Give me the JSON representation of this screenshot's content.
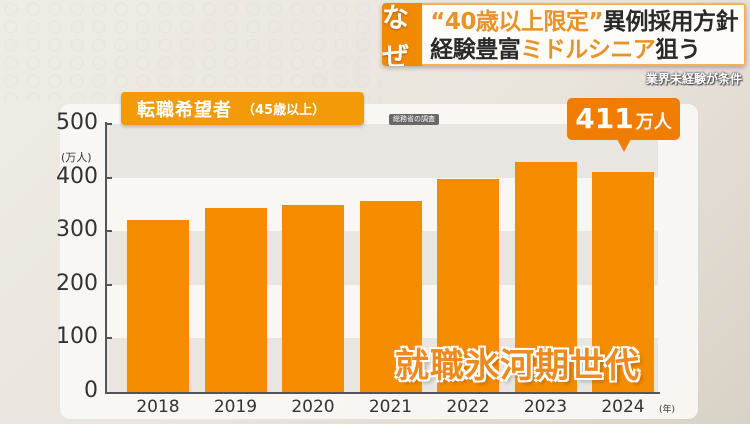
{
  "headline": {
    "tag": "なぜ",
    "line1_accent": "“40歳以上限定”",
    "line1_rest": "異例採用方針",
    "line2_start": "経験豊富",
    "line2_accent": "ミドルシニア",
    "line2_end": "狙う",
    "subcaption": "業界未経験が条件"
  },
  "chart_header": {
    "title": "転職希望者",
    "subtitle": "（45歳以上）",
    "source": "総務省の調査"
  },
  "callout": {
    "value": "411",
    "unit": "万人"
  },
  "overlay_caption": "就職氷河期世代",
  "colors": {
    "bar": "#f58c00",
    "callout": "#f07d00",
    "title_bg": "#f29a08",
    "accent_text": "#e9922a"
  },
  "chart_data": {
    "type": "bar",
    "title": "転職希望者（45歳以上）",
    "source": "総務省の調査",
    "categories": [
      "2018",
      "2019",
      "2020",
      "2021",
      "2022",
      "2023",
      "2024"
    ],
    "values": [
      321,
      343,
      349,
      356,
      397,
      429,
      411
    ],
    "xlabel": "(年)",
    "ylabel": "(万人)",
    "ylim": [
      0,
      500
    ],
    "yticks": [
      "0",
      "100",
      "200",
      "300",
      "400",
      "500"
    ],
    "grid": "alternating horizontal bands",
    "annotations": [
      {
        "category": "2024",
        "text": "411万人"
      },
      {
        "text": "就職氷河期世代"
      }
    ],
    "legend": null
  }
}
